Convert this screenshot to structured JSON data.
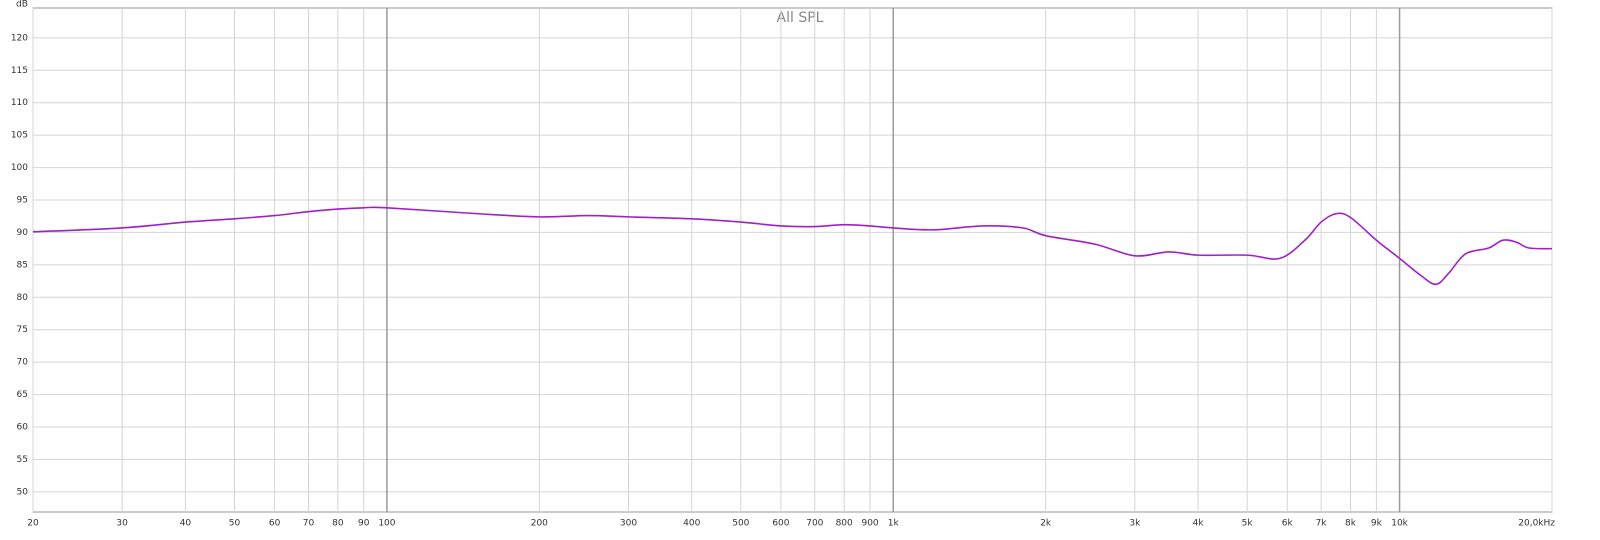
{
  "chart_data": {
    "type": "line",
    "title": "All SPL",
    "y_label": "dB",
    "log_x": true,
    "grid": true,
    "x": [
      20,
      30,
      40,
      50,
      60,
      70,
      80,
      90,
      100,
      150,
      200,
      250,
      300,
      400,
      500,
      600,
      700,
      800,
      900,
      1000,
      1200,
      1500,
      1800,
      2000,
      2500,
      3000,
      3500,
      4000,
      5000,
      5800,
      6500,
      7000,
      7500,
      8000,
      9000,
      10000,
      11000,
      11800,
      12500,
      13500,
      15000,
      16000,
      17000,
      18000,
      20000
    ],
    "series": [
      {
        "color": "#a020c8",
        "values": [
          90.1,
          90.7,
          91.6,
          92.1,
          92.6,
          93.2,
          93.6,
          93.8,
          93.8,
          92.9,
          92.4,
          92.6,
          92.4,
          92.1,
          91.6,
          91.0,
          90.9,
          91.2,
          91.0,
          90.7,
          90.4,
          91.0,
          90.7,
          89.5,
          88.2,
          86.4,
          87.0,
          86.5,
          86.5,
          86.0,
          88.8,
          91.6,
          92.9,
          92.3,
          88.8,
          86.0,
          83.4,
          82.0,
          83.7,
          86.7,
          87.6,
          88.8,
          88.5,
          87.6,
          87.5
        ]
      }
    ],
    "xlim": [
      20,
      20000
    ],
    "ylim": [
      46.9,
      124.6
    ],
    "xticks": [
      20,
      30,
      40,
      50,
      60,
      70,
      80,
      90,
      100,
      200,
      300,
      400,
      500,
      600,
      700,
      800,
      900,
      {
        "value": 1000,
        "label": "1k"
      },
      {
        "value": 2000,
        "label": "2k"
      },
      {
        "value": 3000,
        "label": "3k"
      },
      {
        "value": 4000,
        "label": "4k"
      },
      {
        "value": 5000,
        "label": "5k"
      },
      {
        "value": 6000,
        "label": "6k"
      },
      {
        "value": 7000,
        "label": "7k"
      },
      {
        "value": 8000,
        "label": "8k"
      },
      {
        "value": 9000,
        "label": "9k"
      },
      {
        "value": 10000,
        "label": "10k"
      },
      {
        "value": 20000,
        "label": "20,0kHz"
      }
    ],
    "yticks": [
      50,
      55,
      60,
      65,
      70,
      75,
      80,
      85,
      90,
      95,
      100,
      105,
      110,
      115,
      120
    ]
  }
}
